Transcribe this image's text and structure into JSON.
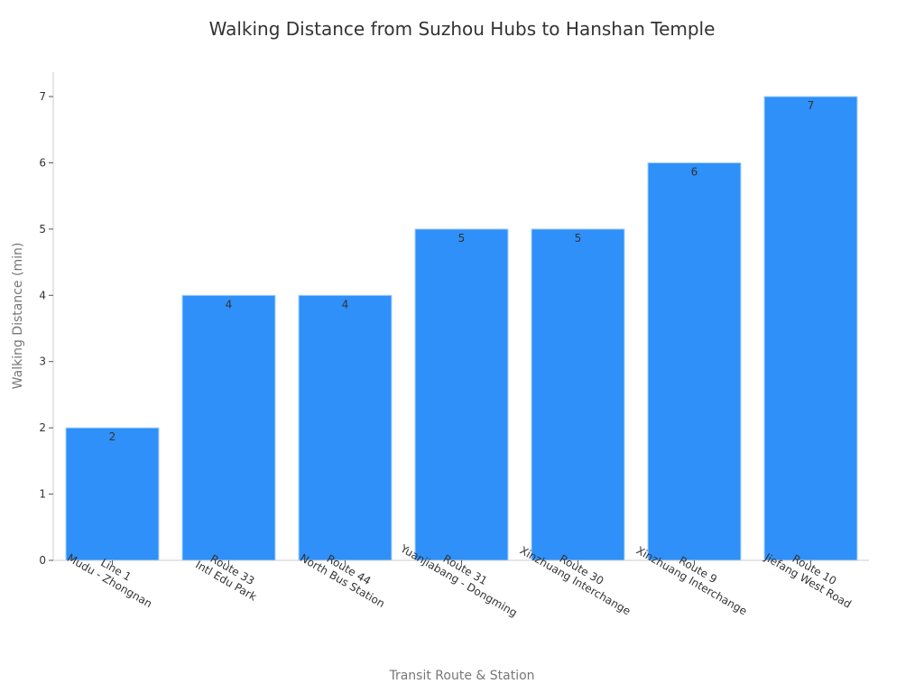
{
  "chart_data": {
    "type": "bar",
    "title": "Walking Distance from Suzhou Hubs to Hanshan Temple",
    "xlabel": "Transit Route & Station",
    "ylabel": "Walking Distance (min)",
    "categories": [
      [
        "Line 1",
        "Mudu - Zhongnan"
      ],
      [
        "Route 33",
        "Intl Edu Park"
      ],
      [
        "Route 44",
        "North Bus Station"
      ],
      [
        "Route 31",
        "Yuanjiabang - Dongming"
      ],
      [
        "Route 30",
        "Xinzhuang Interchange"
      ],
      [
        "Route 9",
        "Xinzhuang Interchange"
      ],
      [
        "Route 10",
        "Jiefang West Road"
      ]
    ],
    "values": [
      2,
      4,
      4,
      5,
      5,
      6,
      7
    ],
    "yticks": [
      0,
      1,
      2,
      3,
      4,
      5,
      6,
      7
    ],
    "ylim": [
      0,
      7.35
    ],
    "grid": false,
    "legend": null,
    "bar_color": "#2e90f8",
    "bar_edge_color": "#a9d3fb",
    "data_labels": true
  }
}
